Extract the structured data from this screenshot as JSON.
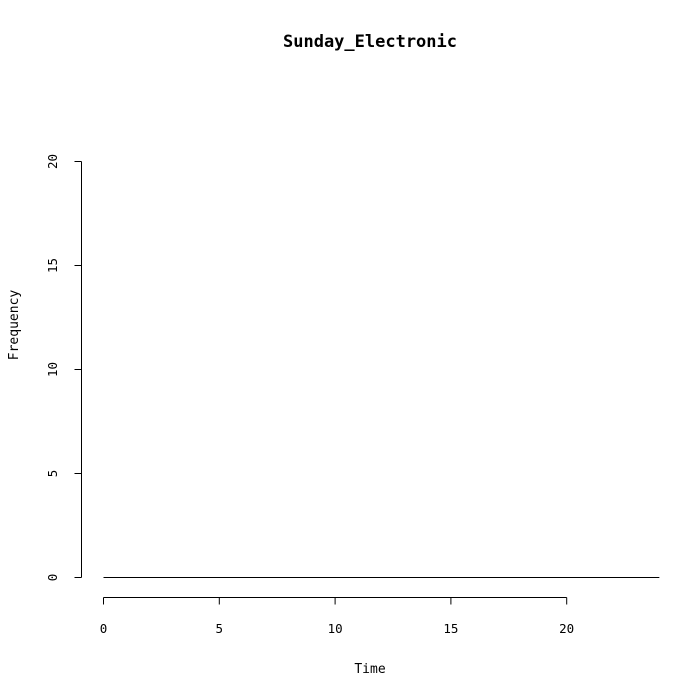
{
  "chart_data": {
    "type": "line",
    "title": "Sunday_Electronic",
    "xlabel": "Time",
    "ylabel": "Frequency",
    "xlim": [
      0,
      24
    ],
    "ylim": [
      0,
      20
    ],
    "x_ticks": [
      0,
      5,
      10,
      15,
      20
    ],
    "y_ticks": [
      0,
      5,
      10,
      15,
      20
    ],
    "grid": false,
    "series": [
      {
        "x": [
          0,
          1,
          2,
          3,
          4,
          5,
          6,
          7,
          8,
          9,
          10,
          11,
          12,
          13,
          14,
          15,
          16,
          17,
          18,
          19,
          20,
          21,
          22,
          23,
          24
        ],
        "values": [
          0,
          0,
          0,
          0,
          0,
          0,
          0,
          0,
          0,
          0,
          0,
          0,
          0,
          0,
          0,
          0,
          0,
          0,
          0,
          0,
          0,
          0,
          0,
          0,
          0
        ]
      }
    ]
  }
}
